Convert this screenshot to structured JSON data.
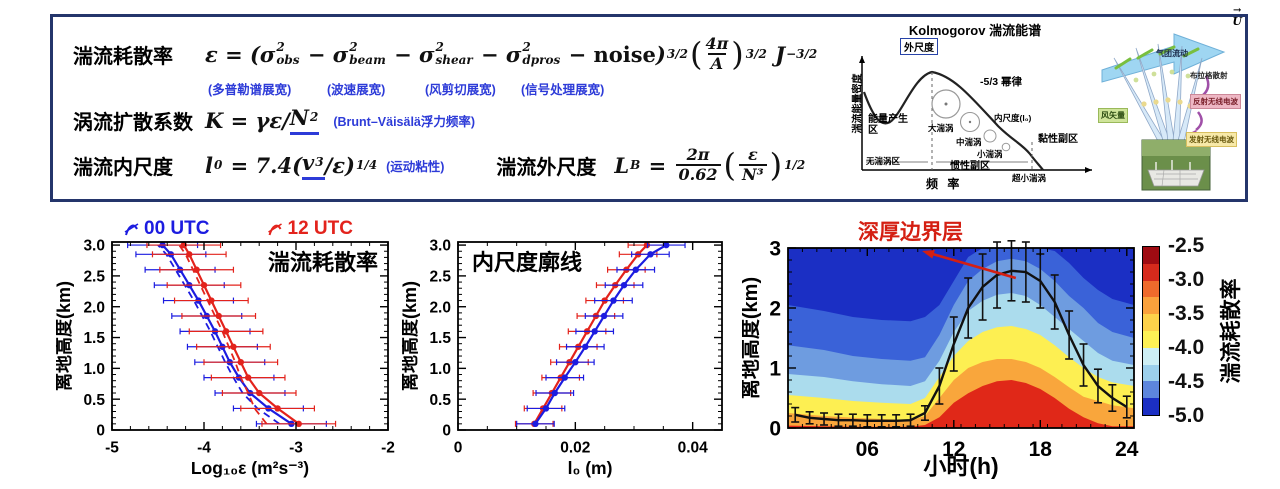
{
  "top_box": {
    "rows": [
      {
        "label": "湍流耗散率",
        "formula": [
          {
            "t": "ε = ("
          },
          {
            "t": "σ",
            "sup": "2",
            "sub": "obs"
          },
          {
            "t": " − "
          },
          {
            "t": "σ",
            "sup": "2",
            "sub": "beam"
          },
          {
            "t": " − "
          },
          {
            "t": "σ",
            "sup": "2",
            "sub": "shear"
          },
          {
            "t": " − "
          },
          {
            "t": "σ",
            "sup": "2",
            "sub": "dpros"
          },
          {
            "t": " − "
          },
          {
            "t": "noise",
            "rm": true
          },
          {
            "t": ")",
            "sup": "3/2"
          },
          {
            "frac": [
              "4π",
              "A"
            ],
            "wrap": true,
            "sup": "3/2"
          },
          {
            "t": " J",
            "sup": "−3/2"
          }
        ],
        "notes": [
          "(多普勒谱展宽)",
          "(波速展宽)",
          "(风剪切展宽)",
          "(信号处理展宽)"
        ]
      },
      {
        "label": "涡流扩散系数",
        "formula": [
          {
            "t": "K = γε/"
          },
          {
            "t": "N",
            "sup": "2",
            "u": true
          }
        ],
        "note": "(Brunt–Väisälä浮力频率)"
      },
      {
        "label": "湍流内尺度",
        "formula": [
          {
            "t": "l",
            "sub": "0"
          },
          {
            "t": " = 7.4("
          },
          {
            "t": "v",
            "sup": "3",
            "u": true
          },
          {
            "t": "/ε)",
            "sup": "1/4"
          }
        ],
        "note": "(运动粘性)",
        "label2": "湍流外尺度",
        "formula2": [
          {
            "t": "L",
            "sub": "B"
          },
          {
            "t": " = "
          },
          {
            "frac": [
              "2π",
              "0.62"
            ]
          },
          {
            "frac": [
              "ε",
              "N³"
            ],
            "wrap": true,
            "sup": "1/2"
          }
        ]
      }
    ],
    "kolmogorov": {
      "title": "Kolmogorov 湍流能谱",
      "ylabel": "湍流能量密度",
      "xlabel": "频 率",
      "outer": "外尺度",
      "energy": "能量产生区",
      "noeddy": "无湍涡区",
      "large": "大湍涡",
      "mid": "中湍涡",
      "small": "小湍涡",
      "tiny": "超小湍涡",
      "power": "-5/3 幂律",
      "inner": "内尺度(l₀)",
      "inertial": "惯性副区",
      "viscous": "黏性副区"
    },
    "profiler": {
      "u_arrow": "→",
      "u": "U",
      "flow": "气团流动",
      "bragg": "布拉格散射",
      "reflect": "反射无线电波",
      "emit": "发射无线电波",
      "wind": "风矢量"
    }
  },
  "chart_data": [
    {
      "type": "profile",
      "title": "湍流耗散率",
      "title_pos": "tr",
      "xlabel": "Log₁₀ε (m²s⁻³)",
      "xlim": [
        -5,
        -2
      ],
      "xticks": [
        -5,
        -4,
        -3,
        -2
      ],
      "xtick_labels": [
        "-5",
        "-4",
        "-3",
        "-2"
      ],
      "xminor": 0.2,
      "ylabel": "离地高度(km)",
      "ylim": [
        0,
        3.05
      ],
      "yticks": [
        0,
        0.5,
        1,
        1.5,
        2,
        2.5,
        3
      ],
      "ytick_labels": [
        "0",
        "0.5",
        "1.0",
        "1.5",
        "2.0",
        "2.5",
        "3.0"
      ],
      "yminor": 0.1,
      "legend": [
        {
          "label": "00 UTC",
          "color": "#1c1ce0"
        },
        {
          "label": "12 UTC",
          "color": "#e3231c"
        }
      ],
      "heights": [
        0.1,
        0.35,
        0.6,
        0.85,
        1.1,
        1.35,
        1.6,
        1.85,
        2.1,
        2.35,
        2.6,
        2.85,
        3.0
      ],
      "series": [
        {
          "color": "#1c1ce0",
          "style": "solid",
          "marker": true,
          "xerr": 0.38,
          "x": [
            -3.05,
            -3.3,
            -3.5,
            -3.62,
            -3.72,
            -3.8,
            -3.88,
            -3.97,
            -4.06,
            -4.16,
            -4.26,
            -4.36,
            -4.45
          ]
        },
        {
          "color": "#1c1ce0",
          "style": "dashed",
          "marker": false,
          "x": [
            -3.18,
            -3.42,
            -3.58,
            -3.68,
            -3.77,
            -3.85,
            -3.93,
            -4.02,
            -4.11,
            -4.21,
            -4.31,
            -4.41,
            -4.5
          ]
        },
        {
          "color": "#e3231c",
          "style": "solid",
          "marker": true,
          "xerr": 0.4,
          "x": [
            -2.97,
            -3.2,
            -3.4,
            -3.52,
            -3.6,
            -3.68,
            -3.76,
            -3.84,
            -3.92,
            -4.0,
            -4.08,
            -4.16,
            -4.22
          ]
        },
        {
          "color": "#e3231c",
          "style": "dashed",
          "marker": false,
          "x": [
            -3.32,
            -3.45,
            -3.52,
            -3.6,
            -3.66,
            -3.73,
            -3.8,
            -3.88,
            -3.96,
            -4.04,
            -4.12,
            -4.2,
            -4.27
          ]
        }
      ]
    },
    {
      "type": "profile",
      "title": "内尺度廓线",
      "title_pos": "tl",
      "xlabel": "l₀ (m)",
      "xlim": [
        0,
        0.045
      ],
      "xticks": [
        0,
        0.02,
        0.04
      ],
      "xtick_labels": [
        "0",
        "0.02",
        "0.04"
      ],
      "xminor": 0.005,
      "ylabel": "离地高度(km)",
      "ylim": [
        0,
        3.05
      ],
      "yticks": [
        0,
        0.5,
        1,
        1.5,
        2,
        2.5,
        3
      ],
      "ytick_labels": [
        "0",
        "0.5",
        "1.0",
        "1.5",
        "2.0",
        "2.5",
        "3.0"
      ],
      "yminor": 0.1,
      "heights": [
        0.1,
        0.35,
        0.6,
        0.85,
        1.1,
        1.35,
        1.6,
        1.85,
        2.1,
        2.35,
        2.6,
        2.85,
        3.0
      ],
      "series": [
        {
          "color": "#e3231c",
          "style": "solid",
          "marker": true,
          "xerr": 0.0032,
          "x": [
            0.013,
            0.0145,
            0.016,
            0.0175,
            0.019,
            0.0205,
            0.022,
            0.0235,
            0.025,
            0.0268,
            0.0287,
            0.0307,
            0.0322
          ]
        },
        {
          "color": "#1c1ce0",
          "style": "solid",
          "marker": true,
          "xerr": 0.0032,
          "x": [
            0.0132,
            0.015,
            0.0165,
            0.0182,
            0.02,
            0.0217,
            0.0233,
            0.0249,
            0.0265,
            0.0283,
            0.0303,
            0.0328,
            0.0355
          ]
        }
      ]
    },
    {
      "type": "contour",
      "xlabel": "小时(h)",
      "xlim": [
        0.5,
        24.5
      ],
      "xticks": [
        6,
        12,
        18,
        24
      ],
      "xtick_labels": [
        "06",
        "12",
        "18",
        "24"
      ],
      "xminor": 1,
      "ylabel": "离地高度(km)",
      "ylim": [
        0,
        3
      ],
      "yticks": [
        0,
        1,
        2,
        3
      ],
      "ytick_labels": [
        "0",
        "1",
        "2",
        "3"
      ],
      "yminor": 0.2,
      "bg": "#1b2fc4",
      "band_x": [
        0.5,
        3,
        5,
        7,
        9,
        10,
        11,
        12,
        13,
        14,
        15,
        16,
        17,
        18,
        19,
        20,
        21,
        22,
        23,
        24.5
      ],
      "bands": [
        {
          "color": "#3a62d8",
          "top": [
            2.05,
            1.95,
            1.85,
            1.8,
            1.78,
            1.85,
            2.05,
            2.45,
            2.85,
            3.0,
            3.0,
            3.0,
            3.0,
            3.0,
            2.95,
            2.75,
            2.5,
            2.3,
            2.15,
            2.05
          ]
        },
        {
          "color": "#6e9ce0",
          "top": [
            1.38,
            1.3,
            1.2,
            1.15,
            1.12,
            1.18,
            1.55,
            2.05,
            2.45,
            2.65,
            2.78,
            2.82,
            2.78,
            2.65,
            2.45,
            2.2,
            2.0,
            1.75,
            1.6,
            1.5
          ]
        },
        {
          "color": "#abdced",
          "top": [
            0.9,
            0.85,
            0.78,
            0.73,
            0.7,
            0.78,
            1.12,
            1.6,
            1.95,
            2.12,
            2.22,
            2.25,
            2.2,
            2.05,
            1.85,
            1.65,
            1.45,
            1.25,
            1.12,
            1.05
          ]
        },
        {
          "color": "#fdef52",
          "top": [
            0.55,
            0.5,
            0.45,
            0.42,
            0.4,
            0.5,
            0.85,
            1.2,
            1.45,
            1.6,
            1.68,
            1.7,
            1.65,
            1.55,
            1.38,
            1.18,
            1.0,
            0.85,
            0.76,
            0.7
          ]
        },
        {
          "color": "#f9a63c",
          "top": [
            0.25,
            0.2,
            0.17,
            0.15,
            0.13,
            0.2,
            0.5,
            0.8,
            1.0,
            1.1,
            1.15,
            1.15,
            1.1,
            1.0,
            0.85,
            0.68,
            0.52,
            0.45,
            0.38,
            0.33
          ]
        },
        {
          "color": "#e02818",
          "top": [
            0.04,
            0.03,
            0.02,
            0.02,
            0.02,
            0.05,
            0.18,
            0.42,
            0.58,
            0.7,
            0.78,
            0.8,
            0.75,
            0.65,
            0.5,
            0.32,
            0.18,
            0.08,
            0.03,
            0.03
          ]
        }
      ],
      "curve": {
        "x": [
          1,
          2,
          3,
          4,
          5,
          6,
          7,
          8,
          9,
          10,
          11,
          12,
          13,
          14,
          15,
          16,
          17,
          18,
          19,
          20,
          21,
          22,
          23,
          24
        ],
        "y": [
          0.22,
          0.17,
          0.15,
          0.13,
          0.13,
          0.12,
          0.12,
          0.12,
          0.13,
          0.25,
          0.7,
          1.4,
          2.0,
          2.35,
          2.55,
          2.62,
          2.6,
          2.45,
          2.1,
          1.55,
          1.05,
          0.7,
          0.5,
          0.35
        ],
        "yerr": [
          0.12,
          0.1,
          0.1,
          0.1,
          0.1,
          0.1,
          0.1,
          0.1,
          0.1,
          0.12,
          0.3,
          0.45,
          0.5,
          0.55,
          0.55,
          0.5,
          0.5,
          0.45,
          0.45,
          0.4,
          0.35,
          0.28,
          0.22,
          0.18
        ]
      },
      "annotation": {
        "text": "深厚边界层",
        "color": "#d41f12",
        "arrow_from": [
          16.3,
          2.5
        ],
        "arrow_to": [
          9.8,
          2.95
        ]
      },
      "colorbar": {
        "colors": [
          "#9f0b12",
          "#d62a1c",
          "#ef6a2c",
          "#faa13c",
          "#fdd14a",
          "#fdf155",
          "#cdeff5",
          "#9cd0ec",
          "#5d86dd",
          "#1b2fc4"
        ],
        "ticks": [
          "-2.5",
          "-3.0",
          "-3.5",
          "-4.0",
          "-4.5",
          "-5.0"
        ],
        "label": "湍流耗散率"
      }
    }
  ]
}
